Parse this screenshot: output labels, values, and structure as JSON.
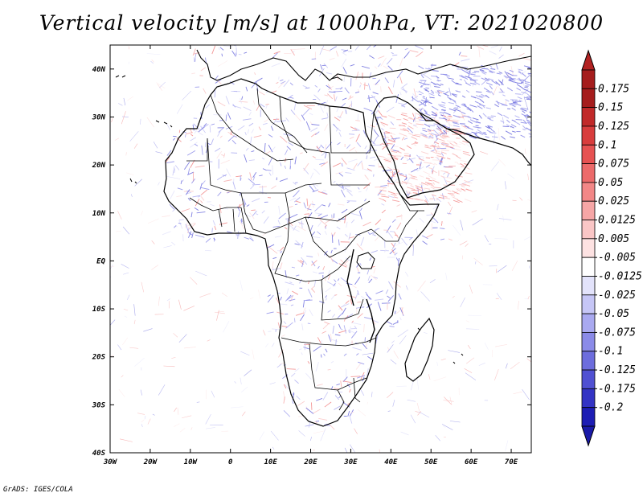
{
  "title": "Vertical velocity [m/s] at 1000hPa, VT: 2021020800",
  "credit": "GrADS: IGES/COLA",
  "map": {
    "projection": "latlon",
    "lon_range": [
      -30,
      75
    ],
    "lat_range": [
      -40,
      45
    ],
    "lon_ticks": [
      {
        "value": -30,
        "label": "30W"
      },
      {
        "value": -20,
        "label": "20W"
      },
      {
        "value": -10,
        "label": "10W"
      },
      {
        "value": 0,
        "label": "0"
      },
      {
        "value": 10,
        "label": "10E"
      },
      {
        "value": 20,
        "label": "20E"
      },
      {
        "value": 30,
        "label": "30E"
      },
      {
        "value": 40,
        "label": "40E"
      },
      {
        "value": 50,
        "label": "50E"
      },
      {
        "value": 60,
        "label": "60E"
      },
      {
        "value": 70,
        "label": "70E"
      }
    ],
    "lat_ticks": [
      {
        "value": 40,
        "label": "40N"
      },
      {
        "value": 30,
        "label": "30N"
      },
      {
        "value": 20,
        "label": "20N"
      },
      {
        "value": 10,
        "label": "10N"
      },
      {
        "value": 0,
        "label": "EQ"
      },
      {
        "value": -10,
        "label": "10S"
      },
      {
        "value": -20,
        "label": "20S"
      },
      {
        "value": -30,
        "label": "30S"
      },
      {
        "value": -40,
        "label": "40S"
      }
    ]
  },
  "colorbar": {
    "levels": [
      {
        "label": "0.175",
        "color": "#a51d1d"
      },
      {
        "label": "0.15",
        "color": "#c12a2a"
      },
      {
        "label": "0.125",
        "color": "#d83d3d"
      },
      {
        "label": "0.1",
        "color": "#e65252"
      },
      {
        "label": "0.075",
        "color": "#ec6a6a"
      },
      {
        "label": "0.05",
        "color": "#f28787"
      },
      {
        "label": "0.025",
        "color": "#f6a6a6"
      },
      {
        "label": "0.0125",
        "color": "#fac6c6"
      },
      {
        "label": "0.005",
        "color": "#fde2e2"
      },
      {
        "label": "-0.005",
        "color": "#ffffff"
      },
      {
        "label": "-0.0125",
        "color": "#e3e3fb"
      },
      {
        "label": "-0.025",
        "color": "#c6c6f6"
      },
      {
        "label": "-0.05",
        "color": "#a9a9f0"
      },
      {
        "label": "-0.075",
        "color": "#8b8be8"
      },
      {
        "label": "-0.1",
        "color": "#6d6ddd"
      },
      {
        "label": "-0.125",
        "color": "#5050d2"
      },
      {
        "label": "-0.175",
        "color": "#3333c4"
      },
      {
        "label": "-0.2",
        "color": "#1d1db4"
      }
    ],
    "top_color": "#b22222",
    "bottom_color": "#1a1aa8"
  }
}
